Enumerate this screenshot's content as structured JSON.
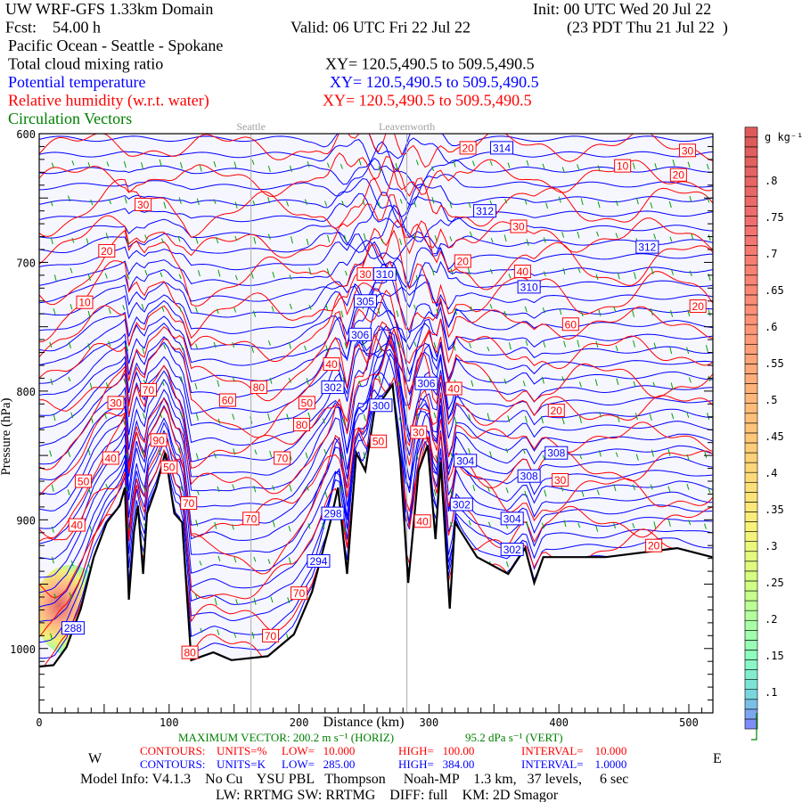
{
  "header": {
    "title": "UW WRF-GFS 1.33km Domain",
    "init": "Init: 00 UTC Wed 20 Jul 22",
    "fcst": "Fcst:    54.00 h",
    "valid": "Valid: 06 UTC Fri 22 Jul 22",
    "local": "(23 PDT Thu 21 Jul 22  )",
    "route": "Pacific Ocean - Seattle - Spokane",
    "fields": [
      {
        "name": "Total cloud mixing ratio",
        "xy": "XY= 120.5,490.5 to 509.5,490.5",
        "color": "#000000"
      },
      {
        "name": "Potential temperature",
        "xy": "XY= 120.5,490.5 to 509.5,490.5",
        "color": "#0000ff"
      },
      {
        "name": "Relative humidity (w.r.t. water)",
        "xy": "XY= 120.5,490.5 to 509.5,490.5",
        "color": "#ff0000"
      },
      {
        "name": "Circulation Vectors",
        "xy": "",
        "color": "#008000"
      }
    ]
  },
  "footer": {
    "max_vector_horiz": "MAXIMUM VECTOR: 200.2 m s⁻¹ (HORIZ)",
    "max_vector_vert": "95.2 dPa s⁻¹ (VERT)",
    "rh_contours": {
      "label": "CONTOURS:",
      "units": "UNITS=%",
      "low": "LOW=   10.000",
      "high": "HIGH=   100.00",
      "interval": "INTERVAL=    10.000"
    },
    "theta_contours": {
      "label": "CONTOURS:",
      "units": "UNITS=K",
      "low": "LOW=   285.00",
      "high": "HIGH=   384.00",
      "interval": "INTERVAL=    1.0000"
    },
    "west": "W",
    "east": "E",
    "model_info": "Model Info: V4.1.3    No Cu    YSU PBL   Thompson     Noah-MP    1.3 km,   37 levels,     6 sec",
    "physics": "LW: RRTMG SW: RRTMG    DIFF: full    KM: 2D Smagor"
  },
  "chart_data": {
    "type": "cross-section",
    "xlabel": "Distance (km)",
    "ylabel": "Pressure (hPa)",
    "xlim": [
      0,
      518
    ],
    "ylim": [
      1050,
      600
    ],
    "xticks": [
      "0",
      "100",
      "200",
      "300",
      "400",
      "500"
    ],
    "yticks": [
      "600",
      "700",
      "800",
      "900",
      "1000"
    ],
    "place_markers": [
      {
        "name": "Seattle",
        "km": 163
      },
      {
        "name": "Leavenworth",
        "km": 283
      }
    ],
    "colorbar": {
      "units": "g kg⁻¹",
      "ticks": [
        ".8",
        ".75",
        ".7",
        ".65",
        ".6",
        ".55",
        ".5",
        ".45",
        ".4",
        ".35",
        ".3",
        ".25",
        ".2",
        ".15",
        ".1"
      ],
      "range": [
        0.05,
        0.86
      ]
    },
    "terrain": [
      [
        0,
        1014
      ],
      [
        11,
        1013
      ],
      [
        21,
        999
      ],
      [
        32,
        969
      ],
      [
        42,
        929
      ],
      [
        52,
        902
      ],
      [
        62,
        889
      ],
      [
        66,
        875
      ],
      [
        69,
        962
      ],
      [
        73,
        909
      ],
      [
        76,
        889
      ],
      [
        80,
        942
      ],
      [
        83,
        895
      ],
      [
        90,
        875
      ],
      [
        97,
        848
      ],
      [
        104,
        895
      ],
      [
        110,
        902
      ],
      [
        117,
        1009
      ],
      [
        134,
        1003
      ],
      [
        148,
        1009
      ],
      [
        176,
        1006
      ],
      [
        196,
        989
      ],
      [
        210,
        956
      ],
      [
        224,
        902
      ],
      [
        230,
        875
      ],
      [
        237,
        942
      ],
      [
        244,
        848
      ],
      [
        251,
        862
      ],
      [
        258,
        815
      ],
      [
        272,
        795
      ],
      [
        278,
        855
      ],
      [
        284,
        949
      ],
      [
        292,
        862
      ],
      [
        299,
        842
      ],
      [
        305,
        915
      ],
      [
        309,
        855
      ],
      [
        316,
        969
      ],
      [
        320,
        902
      ],
      [
        337,
        929
      ],
      [
        361,
        942
      ],
      [
        374,
        922
      ],
      [
        381,
        949
      ],
      [
        388,
        929
      ],
      [
        436,
        929
      ],
      [
        491,
        922
      ],
      [
        518,
        929
      ]
    ],
    "rh_labels": [
      [
        "30",
        80,
        655
      ],
      [
        "20",
        52,
        691
      ],
      [
        "10",
        35,
        731
      ],
      [
        "20",
        330,
        611
      ],
      [
        "30",
        499,
        613
      ],
      [
        "10",
        449,
        625
      ],
      [
        "20",
        492,
        632
      ],
      [
        "30",
        369,
        672
      ],
      [
        "20",
        326,
        699
      ],
      [
        "40",
        372,
        707
      ],
      [
        "30",
        251,
        709
      ],
      [
        "20",
        507,
        734
      ],
      [
        "60",
        409,
        748
      ],
      [
        "40",
        225,
        779
      ],
      [
        "80",
        169,
        797
      ],
      [
        "60",
        145,
        807
      ],
      [
        "70",
        84,
        799
      ],
      [
        "30",
        59,
        809
      ],
      [
        "50",
        206,
        809
      ],
      [
        "80",
        202,
        826
      ],
      [
        "40",
        319,
        798
      ],
      [
        "20",
        398,
        815
      ],
      [
        "30",
        292,
        832
      ],
      [
        "50",
        261,
        839
      ],
      [
        "90",
        92,
        838
      ],
      [
        "40",
        55,
        852
      ],
      [
        "70",
        187,
        852
      ],
      [
        "50",
        100,
        859
      ],
      [
        "50",
        34,
        870
      ],
      [
        "70",
        115,
        887
      ],
      [
        "30",
        401,
        869
      ],
      [
        "70",
        163,
        899
      ],
      [
        "40",
        29,
        904
      ],
      [
        "40",
        295,
        901
      ],
      [
        "70",
        200,
        957
      ],
      [
        "80",
        116,
        1003
      ],
      [
        "70",
        178,
        990
      ],
      [
        "20",
        473,
        920
      ]
    ],
    "theta_labels": [
      [
        "314",
        356,
        611
      ],
      [
        "312",
        343,
        660
      ],
      [
        "312",
        468,
        688
      ],
      [
        "310",
        266,
        709
      ],
      [
        "310",
        377,
        719
      ],
      [
        "305",
        251,
        730
      ],
      [
        "306",
        247,
        756
      ],
      [
        "302",
        226,
        797
      ],
      [
        "306",
        298,
        794
      ],
      [
        "300",
        263,
        811
      ],
      [
        "304",
        328,
        854
      ],
      [
        "308",
        398,
        848
      ],
      [
        "308",
        377,
        866
      ],
      [
        "302",
        325,
        888
      ],
      [
        "304",
        364,
        899
      ],
      [
        "298",
        226,
        895
      ],
      [
        "294",
        215,
        932
      ],
      [
        "302",
        364,
        923
      ],
      [
        "288",
        26,
        984
      ]
    ],
    "cloud_region": {
      "km": [
        0,
        48
      ],
      "hPa": [
        935,
        1005
      ],
      "max_value": 0.8
    }
  }
}
